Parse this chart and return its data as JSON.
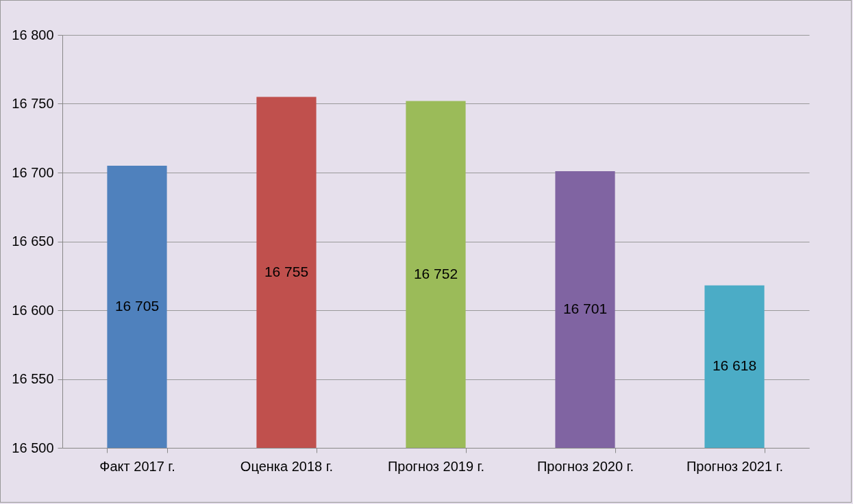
{
  "chart_data": {
    "type": "bar",
    "categories": [
      "Факт 2017 г.",
      "Оценка 2018 г.",
      "Прогноз 2019 г.",
      "Прогноз 2020 г.",
      "Прогноз 2021 г."
    ],
    "values": [
      16705,
      16755,
      16752,
      16701,
      16618
    ],
    "colors": [
      "#4f81bd",
      "#c0504d",
      "#9bbb59",
      "#8064a2",
      "#4bacc6"
    ],
    "value_labels": [
      "16 705",
      "16 755",
      "16 752",
      "16 701",
      "16 618"
    ],
    "ylim": [
      16500,
      16800
    ],
    "yticks": [
      {
        "value": 16500,
        "label": "16 500"
      },
      {
        "value": 16550,
        "label": "16 550"
      },
      {
        "value": 16600,
        "label": "16 600"
      },
      {
        "value": 16650,
        "label": "16 650"
      },
      {
        "value": 16700,
        "label": "16 700"
      },
      {
        "value": 16750,
        "label": "16 750"
      },
      {
        "value": 16800,
        "label": "16 800"
      }
    ],
    "grid": "y"
  }
}
